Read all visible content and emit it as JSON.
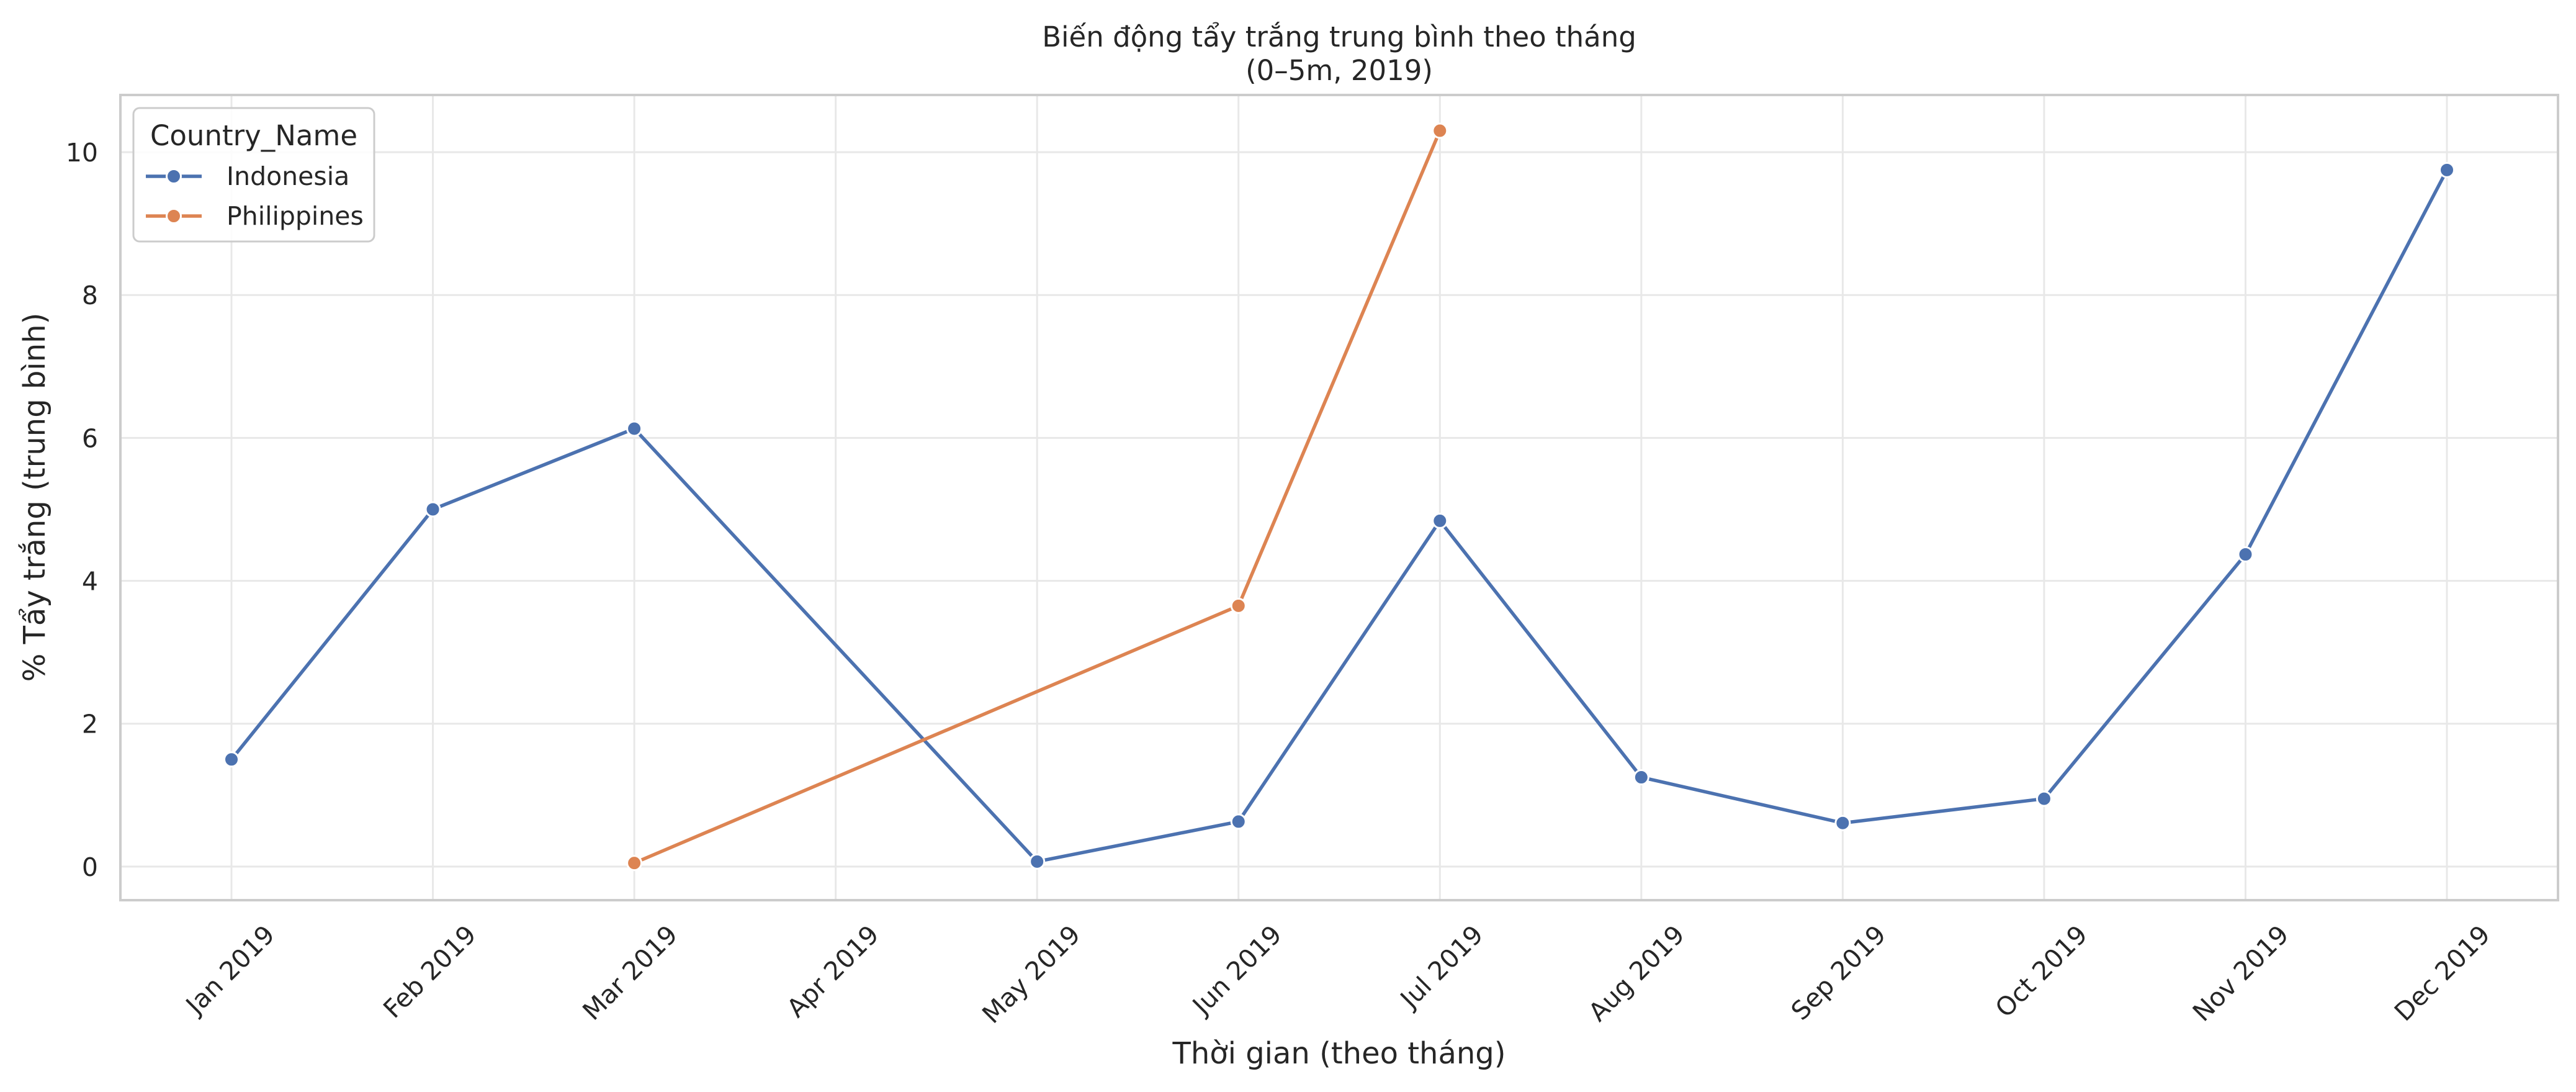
{
  "chart_data": {
    "type": "line",
    "title_line1": "Biến động tẩy trắng trung bình theo tháng",
    "title_line2": "(0–5m, 2019)",
    "xlabel": "Thời gian (theo tháng)",
    "ylabel": "% Tẩy trắng (trung bình)",
    "categories": [
      "Jan 2019",
      "Feb 2019",
      "Mar 2019",
      "Apr 2019",
      "May 2019",
      "Jun 2019",
      "Jul 2019",
      "Aug 2019",
      "Sep 2019",
      "Oct 2019",
      "Nov 2019",
      "Dec 2019"
    ],
    "y_ticks": [
      0,
      2,
      4,
      6,
      8,
      10
    ],
    "ylim": [
      -0.47,
      10.8
    ],
    "grid": true,
    "legend": {
      "title": "Country_Name",
      "placement": "top-left"
    },
    "series": [
      {
        "name": "Indonesia",
        "color": "#4c72b0",
        "points": [
          {
            "x": "Jan 2019",
            "y": 1.5
          },
          {
            "x": "Feb 2019",
            "y": 5.0
          },
          {
            "x": "Mar 2019",
            "y": 6.13
          },
          {
            "x": "May 2019",
            "y": 0.07
          },
          {
            "x": "Jun 2019",
            "y": 0.63
          },
          {
            "x": "Jul 2019",
            "y": 4.84
          },
          {
            "x": "Aug 2019",
            "y": 1.25
          },
          {
            "x": "Sep 2019",
            "y": 0.61
          },
          {
            "x": "Oct 2019",
            "y": 0.95
          },
          {
            "x": "Nov 2019",
            "y": 4.37
          },
          {
            "x": "Dec 2019",
            "y": 9.75
          }
        ]
      },
      {
        "name": "Philippines",
        "color": "#dd8452",
        "points": [
          {
            "x": "Mar 2019",
            "y": 0.05
          },
          {
            "x": "Jun 2019",
            "y": 3.65
          },
          {
            "x": "Jul 2019",
            "y": 10.3
          }
        ]
      }
    ]
  }
}
